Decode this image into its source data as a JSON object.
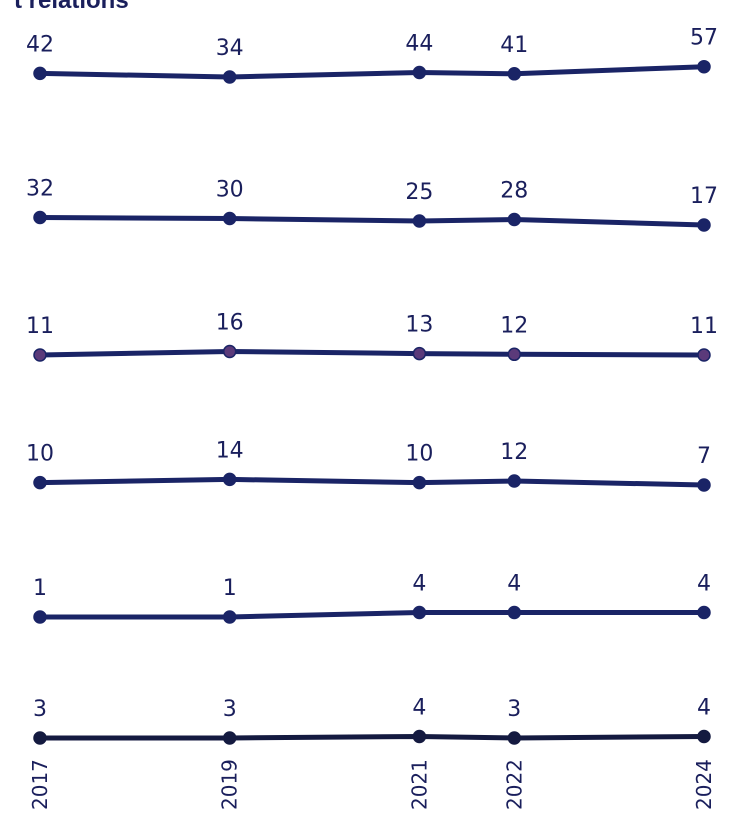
{
  "chart_data": {
    "type": "line",
    "title": "t relations",
    "x": [
      "2017",
      "2019",
      "2021",
      "2022",
      "2024"
    ],
    "xlabel": "",
    "ylabel": "",
    "grid": false,
    "legend": "none",
    "series": [
      {
        "values": [
          42,
          34,
          44,
          41,
          57
        ],
        "color": "#1a2466",
        "marker": "#1a2466"
      },
      {
        "values": [
          32,
          30,
          25,
          28,
          17
        ],
        "color": "#1a2466",
        "marker": "#1a2466"
      },
      {
        "values": [
          11,
          16,
          13,
          12,
          11
        ],
        "color": "#1a2466",
        "marker": "#5b3a7a"
      },
      {
        "values": [
          10,
          14,
          10,
          12,
          7
        ],
        "color": "#1a2466",
        "marker": "#1a2466"
      },
      {
        "values": [
          1,
          1,
          4,
          4,
          4
        ],
        "color": "#1a2466",
        "marker": "#1a2466"
      },
      {
        "values": [
          3,
          3,
          4,
          3,
          4
        ],
        "color": "#141a40",
        "marker": "#141a40"
      }
    ]
  }
}
